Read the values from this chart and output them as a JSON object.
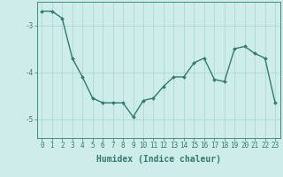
{
  "x": [
    0,
    1,
    2,
    3,
    4,
    5,
    6,
    7,
    8,
    9,
    10,
    11,
    12,
    13,
    14,
    15,
    16,
    17,
    18,
    19,
    20,
    21,
    22,
    23
  ],
  "y": [
    -2.7,
    -2.7,
    -2.85,
    -3.7,
    -4.1,
    -4.55,
    -4.65,
    -4.65,
    -4.65,
    -4.95,
    -4.6,
    -4.55,
    -4.3,
    -4.1,
    -4.1,
    -3.8,
    -3.7,
    -4.15,
    -4.2,
    -3.5,
    -3.45,
    -3.6,
    -3.7,
    -4.65
  ],
  "xlim": [
    -0.5,
    23.5
  ],
  "ylim": [
    -5.4,
    -2.5
  ],
  "yticks": [
    -5,
    -4,
    -3
  ],
  "xticks": [
    0,
    1,
    2,
    3,
    4,
    5,
    6,
    7,
    8,
    9,
    10,
    11,
    12,
    13,
    14,
    15,
    16,
    17,
    18,
    19,
    20,
    21,
    22,
    23
  ],
  "xlabel": "Humidex (Indice chaleur)",
  "line_color": "#2e7d6e",
  "marker": "D",
  "marker_size": 2.0,
  "bg_color": "#ceecea",
  "grid_color": "#a8d4d0",
  "tick_color": "#2e7d6e",
  "label_color": "#2e7d6e",
  "line_width": 1.0,
  "tick_label_fontsize": 5.5,
  "xlabel_fontsize": 7.0
}
